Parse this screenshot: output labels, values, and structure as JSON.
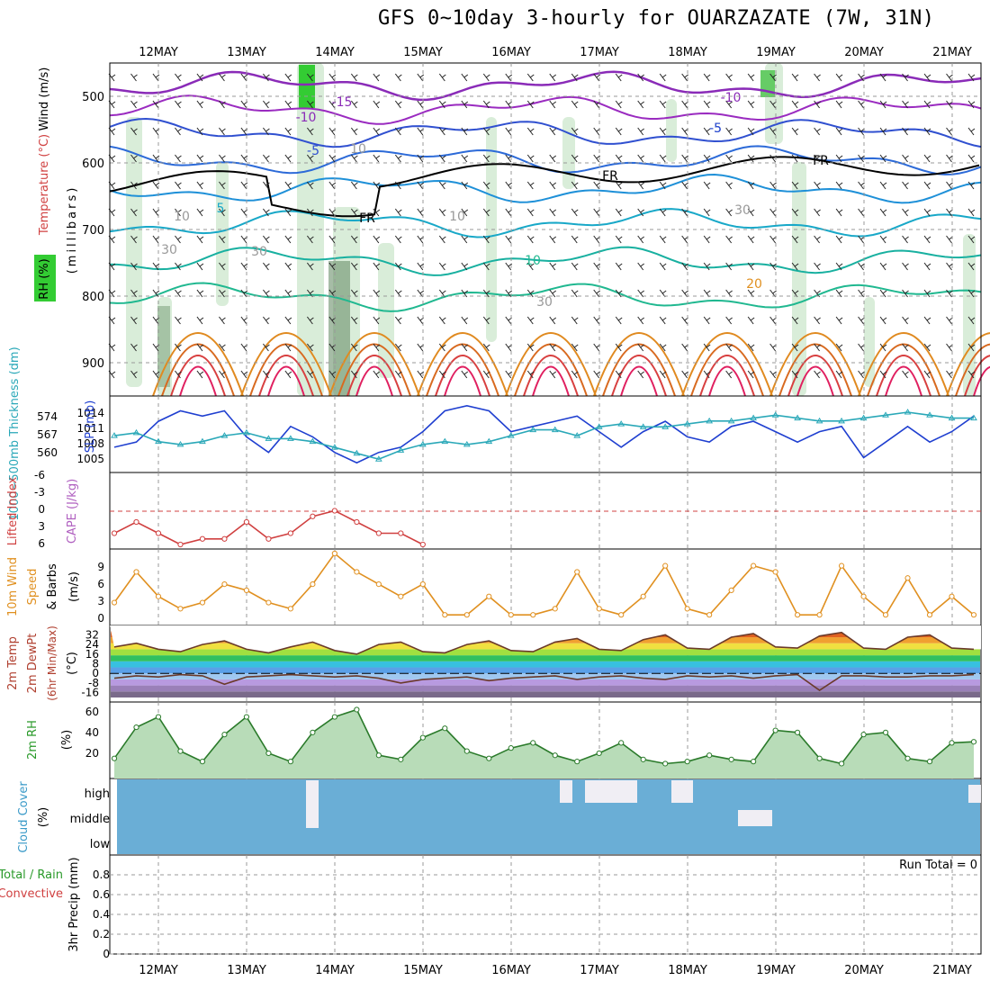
{
  "title": "GFS 0~10day 3-hourly for OUARZAZATE (7W, 31N)",
  "date_labels": [
    "12MAY",
    "13MAY",
    "14MAY",
    "15MAY",
    "16MAY",
    "17MAY",
    "18MAY",
    "19MAY",
    "20MAY",
    "21MAY"
  ],
  "panels": {
    "upper": {
      "ylabels": {
        "rh": "RH (%)",
        "temperature": "Temperature (°C)",
        "wind": "Wind (m/s)",
        "millibars": "(millibars)"
      },
      "pressure_ticks": [
        "500",
        "600",
        "700",
        "800",
        "900"
      ],
      "contour_labels": [
        "-15",
        "-10",
        "-10",
        "-5",
        "-5",
        "-5",
        "FR",
        "FR",
        "FR",
        "5",
        "10",
        "20",
        "10",
        "10",
        "30",
        "30",
        "30",
        "10",
        "30"
      ]
    },
    "thickness": {
      "ylabels": {
        "thickness": "1000~500mb Thickness (dm)",
        "slp": "SLP (mb)"
      },
      "left_ticks": [
        "574",
        "567",
        "560"
      ],
      "right_ticks": [
        "1014",
        "1011",
        "1008",
        "1005"
      ]
    },
    "cape": {
      "ylabels": {
        "lifted": "Lifted Index",
        "cape": "CAPE (J/kg)"
      },
      "ticks": [
        "-6",
        "-3",
        "0",
        "3",
        "6"
      ]
    },
    "wind10": {
      "ylabels": {
        "main": "10m Wind",
        "speed": "Speed",
        "barbs": "& Barbs",
        "unit": "(m/s)"
      },
      "ticks": [
        "9",
        "6",
        "3",
        "0"
      ]
    },
    "temp2m": {
      "ylabels": {
        "temp": "2m Temp",
        "dew": "2m DewPt",
        "minmax": "(6hr Min/Max)",
        "unit": "(°C)"
      },
      "ticks": [
        "32",
        "24",
        "16",
        "8",
        "0",
        "-8",
        "-16"
      ]
    },
    "rh2m": {
      "ylabels": {
        "main": "2m RH",
        "unit": "(%)"
      },
      "ticks": [
        "60",
        "40",
        "20"
      ]
    },
    "cloud": {
      "ylabels": {
        "main": "Cloud Cover",
        "unit": "(%)"
      },
      "levels": [
        "high",
        "middle",
        "low"
      ]
    },
    "precip": {
      "ylabels": {
        "total": "Total / Rain",
        "convective": "Convective",
        "main": "3hr Precip (mm)"
      },
      "ticks": [
        "0.8",
        "0.6",
        "0.4",
        "0.2",
        "0"
      ],
      "run_total": "Run Total = 0"
    }
  },
  "colors": {
    "slp": "#1f3fd0",
    "thickness": "#2aa8b8",
    "lifted": "#d04040",
    "wind10": "#e09020",
    "rh": "#2a9a2a",
    "cloud": "#6aaed6",
    "freezing": "#000000"
  },
  "chart_data": [
    {
      "type": "line",
      "name": "slp",
      "x": [
        "11MAY12",
        "11MAY18",
        "12MAY00",
        "12MAY06",
        "12MAY12",
        "12MAY18",
        "13MAY00",
        "13MAY06",
        "13MAY12",
        "13MAY18",
        "14MAY00",
        "14MAY06",
        "14MAY12",
        "14MAY18",
        "15MAY00",
        "15MAY06",
        "15MAY12",
        "15MAY18",
        "16MAY00",
        "16MAY06",
        "16MAY12",
        "16MAY18",
        "17MAY00",
        "17MAY06",
        "17MAY12",
        "17MAY18",
        "18MAY00",
        "18MAY06",
        "18MAY12",
        "18MAY18",
        "19MAY00",
        "19MAY06",
        "19MAY12",
        "19MAY18",
        "20MAY00",
        "20MAY06",
        "20MAY12",
        "20MAY18",
        "21MAY00",
        "21MAY06"
      ],
      "values": [
        1007,
        1008,
        1012,
        1014,
        1013,
        1014,
        1009,
        1006,
        1011,
        1009,
        1006,
        1004,
        1006,
        1007,
        1010,
        1014,
        1015,
        1014,
        1010,
        1011,
        1012,
        1013,
        1010,
        1007,
        1010,
        1012,
        1009,
        1008,
        1011,
        1012,
        1010,
        1008,
        1010,
        1011,
        1005,
        1008,
        1011,
        1008,
        1010,
        1013
      ],
      "ylim": [
        1003,
        1016
      ]
    },
    {
      "type": "line",
      "name": "thickness",
      "x": [
        "11MAY12",
        "11MAY18",
        "12MAY00",
        "12MAY06",
        "12MAY12",
        "12MAY18",
        "13MAY00",
        "13MAY06",
        "13MAY12",
        "13MAY18",
        "14MAY00",
        "14MAY06",
        "14MAY12",
        "14MAY18",
        "15MAY00",
        "15MAY06",
        "15MAY12",
        "15MAY18",
        "16MAY00",
        "16MAY06",
        "16MAY12",
        "16MAY18",
        "17MAY00",
        "17MAY06",
        "17MAY12",
        "17MAY18",
        "18MAY00",
        "18MAY06",
        "18MAY12",
        "18MAY18",
        "19MAY00",
        "19MAY06",
        "19MAY12",
        "19MAY18",
        "20MAY00",
        "20MAY06",
        "20MAY12",
        "20MAY18",
        "21MAY00",
        "21MAY06"
      ],
      "values": [
        566,
        567,
        564,
        563,
        564,
        566,
        567,
        565,
        565,
        564,
        562,
        560,
        558,
        561,
        563,
        564,
        563,
        564,
        566,
        568,
        568,
        566,
        569,
        570,
        569,
        569,
        570,
        571,
        571,
        572,
        573,
        572,
        571,
        571,
        572,
        573,
        574,
        573,
        572,
        572
      ],
      "ylim": [
        555,
        578
      ]
    },
    {
      "type": "line",
      "name": "lifted_index",
      "x": [
        "11MAY12",
        "11MAY18",
        "12MAY00",
        "12MAY06",
        "12MAY12",
        "12MAY18",
        "13MAY00",
        "13MAY06",
        "13MAY12",
        "13MAY18",
        "14MAY00",
        "14MAY06",
        "14MAY12",
        "14MAY18",
        "15MAY00"
      ],
      "values": [
        4,
        2,
        4,
        6,
        5,
        5,
        2,
        5,
        4,
        1,
        0,
        2,
        4,
        4,
        6
      ],
      "ylim": [
        6,
        -6
      ]
    },
    {
      "type": "line",
      "name": "wind10_speed",
      "x": [
        "11MAY12",
        "11MAY18",
        "12MAY00",
        "12MAY06",
        "12MAY12",
        "12MAY18",
        "13MAY00",
        "13MAY06",
        "13MAY12",
        "13MAY18",
        "14MAY00",
        "14MAY06",
        "14MAY12",
        "14MAY18",
        "15MAY00",
        "15MAY06",
        "15MAY12",
        "15MAY18",
        "16MAY00",
        "16MAY06",
        "16MAY12",
        "16MAY18",
        "17MAY00",
        "17MAY06",
        "17MAY12",
        "17MAY18",
        "18MAY00",
        "18MAY06",
        "18MAY12",
        "18MAY18",
        "19MAY00",
        "19MAY06",
        "19MAY12",
        "19MAY18",
        "20MAY00",
        "20MAY06",
        "20MAY12",
        "20MAY18",
        "21MAY00",
        "21MAY06"
      ],
      "values": [
        3,
        8,
        4,
        2,
        3,
        6,
        5,
        3,
        2,
        6,
        11,
        8,
        6,
        4,
        6,
        1,
        1,
        4,
        1,
        1,
        2,
        8,
        2,
        1,
        4,
        9,
        2,
        1,
        5,
        9,
        8,
        1,
        1,
        9,
        4,
        1,
        7,
        1,
        4,
        1
      ],
      "ylim": [
        0,
        11
      ]
    },
    {
      "type": "area",
      "name": "temp2m",
      "x": [
        "11MAY12",
        "11MAY18",
        "12MAY00",
        "12MAY06",
        "12MAY12",
        "12MAY18",
        "13MAY00",
        "13MAY06",
        "13MAY12",
        "13MAY18",
        "14MAY00",
        "14MAY06",
        "14MAY12",
        "14MAY18",
        "15MAY00",
        "15MAY06",
        "15MAY12",
        "15MAY18",
        "16MAY00",
        "16MAY06",
        "16MAY12",
        "16MAY18",
        "17MAY00",
        "17MAY06",
        "17MAY12",
        "17MAY18",
        "18MAY00",
        "18MAY06",
        "18MAY12",
        "18MAY18",
        "19MAY00",
        "19MAY06",
        "19MAY12",
        "19MAY18",
        "20MAY00",
        "20MAY06",
        "20MAY12",
        "20MAY18",
        "21MAY00",
        "21MAY06"
      ],
      "values": [
        22,
        25,
        20,
        18,
        24,
        27,
        20,
        17,
        22,
        26,
        19,
        16,
        24,
        26,
        18,
        17,
        24,
        27,
        19,
        18,
        26,
        29,
        20,
        19,
        28,
        32,
        21,
        20,
        30,
        33,
        22,
        21,
        31,
        34,
        21,
        20,
        30,
        32,
        21,
        20
      ],
      "ylim": [
        -20,
        36
      ]
    },
    {
      "type": "line",
      "name": "dewpoint2m",
      "x": [
        "11MAY12",
        "11MAY18",
        "12MAY00",
        "12MAY06",
        "12MAY12",
        "12MAY18",
        "13MAY00",
        "13MAY06",
        "13MAY12",
        "13MAY18",
        "14MAY00",
        "14MAY06",
        "14MAY12",
        "14MAY18",
        "15MAY00",
        "15MAY06",
        "15MAY12",
        "15MAY18",
        "16MAY00",
        "16MAY06",
        "16MAY12",
        "16MAY18",
        "17MAY00",
        "17MAY06",
        "17MAY12",
        "17MAY18",
        "18MAY00",
        "18MAY06",
        "18MAY12",
        "18MAY18",
        "19MAY00",
        "19MAY06",
        "19MAY12",
        "19MAY18",
        "20MAY00",
        "20MAY06",
        "20MAY12",
        "20MAY18",
        "21MAY00",
        "21MAY06"
      ],
      "values": [
        -4,
        -2,
        -3,
        -1,
        -2,
        -9,
        -3,
        -2,
        -1,
        -2,
        -3,
        -2,
        -4,
        -8,
        -5,
        -4,
        -3,
        -6,
        -4,
        -3,
        -2,
        -5,
        -3,
        -2,
        -4,
        -5,
        -2,
        -3,
        -2,
        -4,
        -2,
        -1,
        -14,
        -2,
        -2,
        -3,
        -3,
        -2,
        -2,
        -1
      ],
      "ylim": [
        -20,
        36
      ]
    },
    {
      "type": "area",
      "name": "rh2m",
      "x": [
        "11MAY12",
        "11MAY18",
        "12MAY00",
        "12MAY06",
        "12MAY12",
        "12MAY18",
        "13MAY00",
        "13MAY06",
        "13MAY12",
        "13MAY18",
        "14MAY00",
        "14MAY06",
        "14MAY12",
        "14MAY18",
        "15MAY00",
        "15MAY06",
        "15MAY12",
        "15MAY18",
        "16MAY00",
        "16MAY06",
        "16MAY12",
        "16MAY18",
        "17MAY00",
        "17MAY06",
        "17MAY12",
        "17MAY18",
        "18MAY00",
        "18MAY06",
        "18MAY12",
        "18MAY18",
        "19MAY00",
        "19MAY06",
        "19MAY12",
        "19MAY18",
        "20MAY00",
        "20MAY06",
        "20MAY12",
        "20MAY18",
        "21MAY00",
        "21MAY06"
      ],
      "values": [
        15,
        45,
        55,
        22,
        12,
        38,
        55,
        20,
        12,
        40,
        55,
        62,
        18,
        14,
        35,
        44,
        22,
        15,
        25,
        30,
        18,
        12,
        20,
        30,
        14,
        10,
        12,
        18,
        14,
        12,
        42,
        40,
        15,
        10,
        38,
        40,
        15,
        12,
        30,
        31
      ],
      "ylim": [
        0,
        65
      ]
    },
    {
      "type": "line",
      "name": "precip_3hr",
      "values": [
        0,
        0,
        0,
        0,
        0,
        0,
        0,
        0,
        0,
        0
      ],
      "ylim": [
        0,
        1
      ]
    }
  ]
}
